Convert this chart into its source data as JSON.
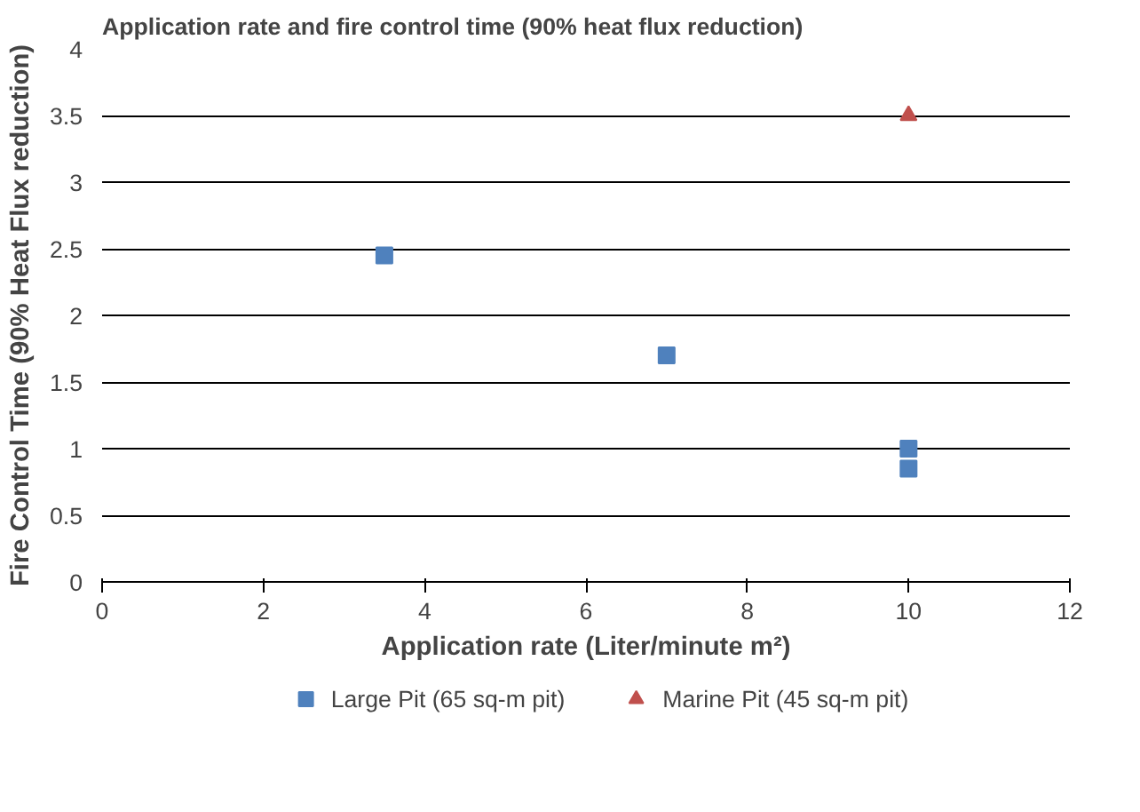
{
  "chart_data": {
    "type": "scatter",
    "title": "Application rate and fire control time  (90% heat flux reduction)",
    "xlabel": "Application rate (Liter/minute m²)",
    "ylabel": "Fire Control Time (90% Heat Flux reduction)",
    "xlim": [
      0,
      12
    ],
    "xticks": [
      0,
      2,
      4,
      6,
      8,
      10,
      12
    ],
    "ylim": [
      0,
      4
    ],
    "yticks": [
      0,
      0.5,
      1,
      1.5,
      2,
      2.5,
      3,
      3.5,
      4
    ],
    "grid": "y",
    "legend": "bottom",
    "series": [
      {
        "name": "Large Pit (65 sq-m pit)",
        "color": "#4f81bd",
        "marker": "square",
        "x": [
          3.5,
          7,
          10,
          10
        ],
        "values": [
          2.45,
          1.7,
          1.0,
          0.85
        ]
      },
      {
        "name": "Marine Pit (45 sq-m pit)",
        "color": "#c0504d",
        "marker": "triangle",
        "x": [
          10
        ],
        "values": [
          3.5
        ]
      }
    ]
  }
}
